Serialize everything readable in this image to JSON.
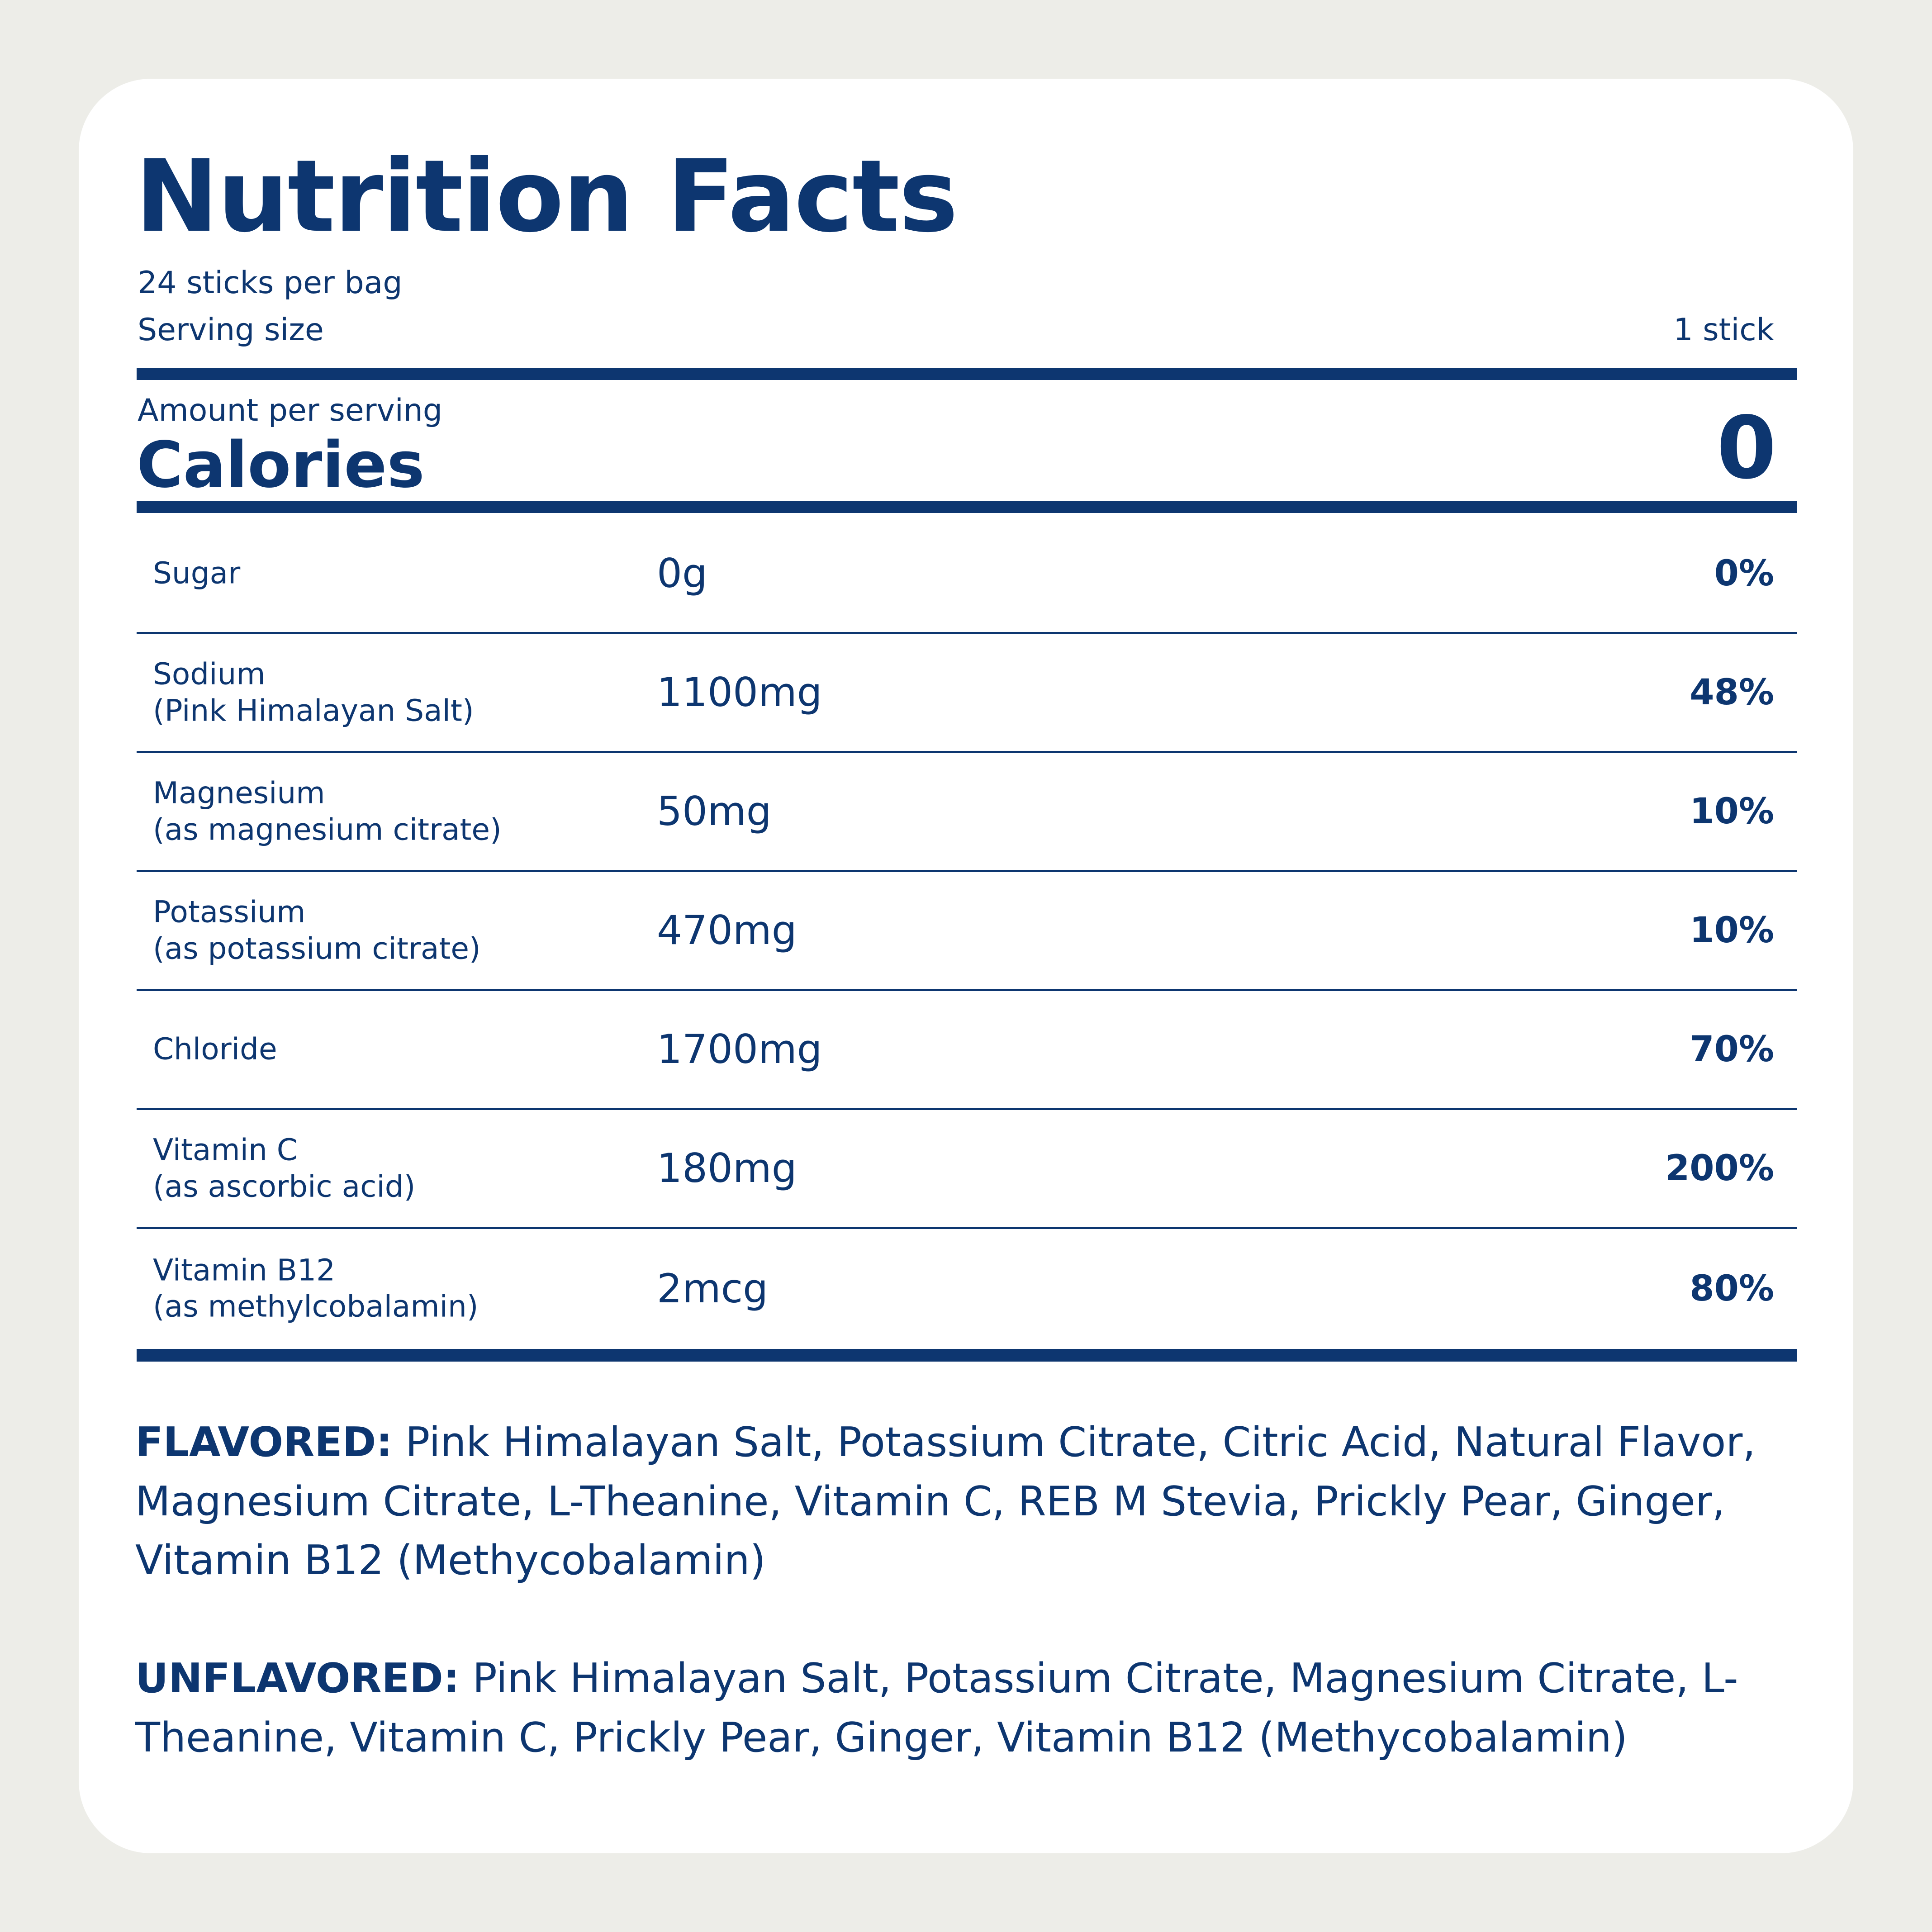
{
  "label": {
    "title": "Nutrition Facts",
    "servings_per_container": "24 sticks per bag",
    "serving_size_label": "Serving size",
    "serving_size_value": "1 stick",
    "amount_per_serving": "Amount per serving",
    "calories_label": "Calories",
    "calories_value": "0"
  },
  "nutrients": [
    {
      "name": "Sugar",
      "sub": "",
      "amount": "0g",
      "dv": "0%"
    },
    {
      "name": "Sodium",
      "sub": "(Pink Himalayan Salt)",
      "amount": "1100mg",
      "dv": "48%"
    },
    {
      "name": "Magnesium",
      "sub": "(as magnesium citrate)",
      "amount": "50mg",
      "dv": "10%"
    },
    {
      "name": "Potassium",
      "sub": "(as potassium citrate)",
      "amount": "470mg",
      "dv": "10%"
    },
    {
      "name": "Chloride",
      "sub": "",
      "amount": "1700mg",
      "dv": "70%"
    },
    {
      "name": "Vitamin C",
      "sub": "(as ascorbic acid)",
      "amount": "180mg",
      "dv": "200%"
    },
    {
      "name": "Vitamin B12",
      "sub": "(as methylcobalamin)",
      "amount": "2mcg",
      "dv": "80%"
    }
  ],
  "ingredients": {
    "flavored_label": "FLAVORED:",
    "flavored_text": "Pink Himalayan Salt, Potassium Citrate, Citric Acid, Natural Flavor, Magnesium Citrate, L-Theanine, Vitamin C, REB M Stevia, Prickly Pear, Ginger, Vitamin B12 (Methycobalamin)",
    "unflavored_label": "UNFLAVORED:",
    "unflavored_text": "Pink Himalayan Salt, Potassium Citrate, Magnesium Citrate, L-Theanine, Vitamin C, Prickly Pear, Ginger, Vitamin B12 (Methycobalamin)"
  },
  "colors": {
    "text": "#0d3670",
    "background": "#edede8",
    "card": "#ffffff"
  }
}
